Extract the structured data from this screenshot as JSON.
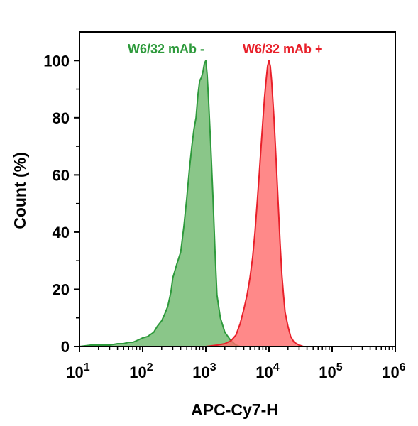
{
  "chart_data": {
    "type": "area",
    "xscale": "log",
    "xlim": [
      10,
      1000000
    ],
    "ylim": [
      0,
      110
    ],
    "xlabel": "APC-Cy7-H",
    "ylabel": "Count  (%)",
    "x_ticks": [
      {
        "value": 10,
        "base": "10",
        "exp": "1"
      },
      {
        "value": 100,
        "base": "10",
        "exp": "2"
      },
      {
        "value": 1000,
        "base": "10",
        "exp": "3"
      },
      {
        "value": 10000,
        "base": "10",
        "exp": "4"
      },
      {
        "value": 100000,
        "base": "10",
        "exp": "5"
      },
      {
        "value": 1000000,
        "base": "10",
        "exp": "6"
      }
    ],
    "y_ticks": [
      0,
      20,
      40,
      60,
      80,
      100
    ],
    "legend_placement": "top",
    "series": [
      {
        "name": "W6/32 mAb -",
        "color": "#2e9a3c",
        "fill": "#6db86b",
        "fill_opacity": 0.8,
        "x": [
          10,
          15,
          20,
          30,
          40,
          50,
          60,
          70,
          80,
          100,
          120,
          150,
          170,
          200,
          220,
          250,
          280,
          300,
          350,
          400,
          450,
          500,
          550,
          600,
          650,
          700,
          750,
          800,
          850,
          900,
          950,
          1000,
          1050,
          1100,
          1200,
          1300,
          1400,
          1500,
          1700,
          2000,
          2500,
          3000,
          3500
        ],
        "y": [
          0,
          0.5,
          0.5,
          0.5,
          1,
          1,
          1.5,
          1.5,
          2,
          3,
          3.5,
          5,
          7,
          9,
          11,
          14,
          19,
          24,
          29,
          33,
          42,
          52,
          62,
          70,
          76,
          80,
          88,
          93,
          94,
          96,
          99,
          100,
          95,
          87,
          70,
          52,
          33,
          18,
          10,
          5,
          2,
          0.5,
          0
        ]
      },
      {
        "name": "W6/32 mAb +",
        "color": "#e8202a",
        "fill": "#ff6b6b",
        "fill_opacity": 0.8,
        "x": [
          1000,
          1500,
          2000,
          2500,
          3000,
          3500,
          4000,
          4500,
          5000,
          5500,
          6000,
          6500,
          7000,
          7500,
          8000,
          8500,
          9000,
          9500,
          10000,
          10500,
          11000,
          12000,
          13000,
          14000,
          15000,
          16000,
          17000,
          18000,
          20000,
          22000,
          25000,
          30000,
          35000,
          40000
        ],
        "y": [
          0,
          0.5,
          1,
          2,
          4,
          8,
          13,
          18,
          24,
          31,
          40,
          50,
          60,
          70,
          79,
          87,
          93,
          98,
          100,
          98,
          93,
          80,
          65,
          50,
          36,
          25,
          18,
          12,
          7,
          3.5,
          1.5,
          0.5,
          0,
          0
        ]
      }
    ]
  }
}
